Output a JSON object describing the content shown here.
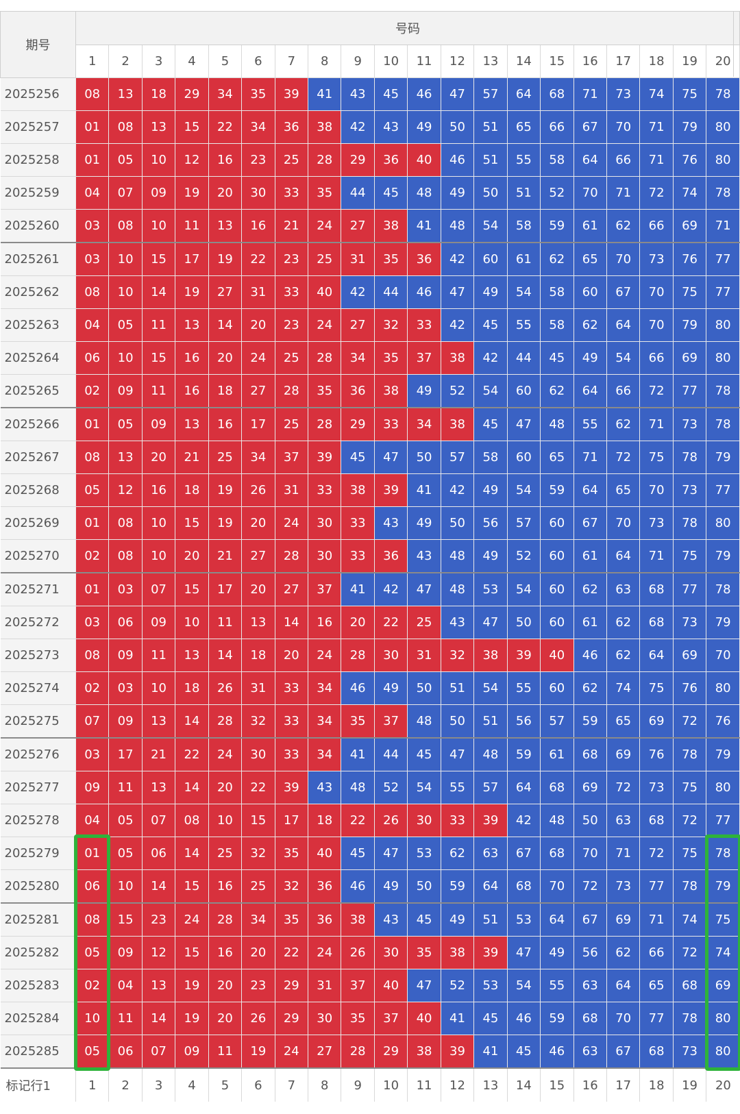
{
  "header": {
    "issue_label": "期号",
    "numbers_label": "号码",
    "columns": [
      "1",
      "2",
      "3",
      "4",
      "5",
      "6",
      "7",
      "8",
      "9",
      "10",
      "11",
      "12",
      "13",
      "14",
      "15",
      "16",
      "17",
      "18",
      "19",
      "20"
    ]
  },
  "colors": {
    "low": "#d8313d",
    "high": "#3a62c4",
    "marker": "#2eb33a"
  },
  "rows": [
    {
      "issue": "2025256",
      "nums": [
        "08",
        "13",
        "18",
        "29",
        "34",
        "35",
        "39",
        "41",
        "43",
        "45",
        "46",
        "47",
        "57",
        "64",
        "68",
        "71",
        "73",
        "74",
        "75",
        "78"
      ],
      "red": 7
    },
    {
      "issue": "2025257",
      "nums": [
        "01",
        "08",
        "13",
        "15",
        "22",
        "34",
        "36",
        "38",
        "42",
        "43",
        "49",
        "50",
        "51",
        "65",
        "66",
        "67",
        "70",
        "71",
        "79",
        "80"
      ],
      "red": 8
    },
    {
      "issue": "2025258",
      "nums": [
        "01",
        "05",
        "10",
        "12",
        "16",
        "23",
        "25",
        "28",
        "29",
        "36",
        "40",
        "46",
        "51",
        "55",
        "58",
        "64",
        "66",
        "71",
        "76",
        "80"
      ],
      "red": 11
    },
    {
      "issue": "2025259",
      "nums": [
        "04",
        "07",
        "09",
        "19",
        "20",
        "30",
        "33",
        "35",
        "44",
        "45",
        "48",
        "49",
        "50",
        "51",
        "52",
        "70",
        "71",
        "72",
        "74",
        "78"
      ],
      "red": 8
    },
    {
      "issue": "2025260",
      "nums": [
        "03",
        "08",
        "10",
        "11",
        "13",
        "16",
        "21",
        "24",
        "27",
        "38",
        "41",
        "48",
        "54",
        "58",
        "59",
        "61",
        "62",
        "66",
        "69",
        "71"
      ],
      "red": 10
    },
    {
      "issue": "2025261",
      "nums": [
        "03",
        "10",
        "15",
        "17",
        "19",
        "22",
        "23",
        "25",
        "31",
        "35",
        "36",
        "42",
        "60",
        "61",
        "62",
        "65",
        "70",
        "73",
        "76",
        "77"
      ],
      "red": 11
    },
    {
      "issue": "2025262",
      "nums": [
        "08",
        "10",
        "14",
        "19",
        "27",
        "31",
        "33",
        "40",
        "42",
        "44",
        "46",
        "47",
        "49",
        "54",
        "58",
        "60",
        "67",
        "70",
        "75",
        "77"
      ],
      "red": 8
    },
    {
      "issue": "2025263",
      "nums": [
        "04",
        "05",
        "11",
        "13",
        "14",
        "20",
        "23",
        "24",
        "27",
        "32",
        "33",
        "42",
        "45",
        "55",
        "58",
        "62",
        "64",
        "70",
        "79",
        "80"
      ],
      "red": 11
    },
    {
      "issue": "2025264",
      "nums": [
        "06",
        "10",
        "15",
        "16",
        "20",
        "24",
        "25",
        "28",
        "34",
        "35",
        "37",
        "38",
        "42",
        "44",
        "45",
        "49",
        "54",
        "66",
        "69",
        "80"
      ],
      "red": 12
    },
    {
      "issue": "2025265",
      "nums": [
        "02",
        "09",
        "11",
        "16",
        "18",
        "27",
        "28",
        "35",
        "36",
        "38",
        "49",
        "52",
        "54",
        "60",
        "62",
        "64",
        "66",
        "72",
        "77",
        "78"
      ],
      "red": 10
    },
    {
      "issue": "2025266",
      "nums": [
        "01",
        "05",
        "09",
        "13",
        "16",
        "17",
        "25",
        "28",
        "29",
        "33",
        "34",
        "38",
        "45",
        "47",
        "48",
        "55",
        "62",
        "71",
        "73",
        "78"
      ],
      "red": 12
    },
    {
      "issue": "2025267",
      "nums": [
        "08",
        "13",
        "20",
        "21",
        "25",
        "34",
        "37",
        "39",
        "45",
        "47",
        "50",
        "57",
        "58",
        "60",
        "65",
        "71",
        "72",
        "75",
        "78",
        "79"
      ],
      "red": 8
    },
    {
      "issue": "2025268",
      "nums": [
        "05",
        "12",
        "16",
        "18",
        "19",
        "26",
        "31",
        "33",
        "38",
        "39",
        "41",
        "42",
        "49",
        "54",
        "59",
        "64",
        "65",
        "70",
        "73",
        "77"
      ],
      "red": 10
    },
    {
      "issue": "2025269",
      "nums": [
        "01",
        "08",
        "10",
        "15",
        "19",
        "20",
        "24",
        "30",
        "33",
        "43",
        "49",
        "50",
        "56",
        "57",
        "60",
        "67",
        "70",
        "73",
        "78",
        "80"
      ],
      "red": 9
    },
    {
      "issue": "2025270",
      "nums": [
        "02",
        "08",
        "10",
        "20",
        "21",
        "27",
        "28",
        "30",
        "33",
        "36",
        "43",
        "48",
        "49",
        "52",
        "60",
        "61",
        "64",
        "71",
        "75",
        "79"
      ],
      "red": 10
    },
    {
      "issue": "2025271",
      "nums": [
        "01",
        "03",
        "07",
        "15",
        "17",
        "20",
        "27",
        "37",
        "41",
        "42",
        "47",
        "48",
        "53",
        "54",
        "60",
        "62",
        "63",
        "68",
        "77",
        "78"
      ],
      "red": 8
    },
    {
      "issue": "2025272",
      "nums": [
        "03",
        "06",
        "09",
        "10",
        "11",
        "13",
        "14",
        "16",
        "20",
        "22",
        "25",
        "43",
        "47",
        "50",
        "60",
        "61",
        "62",
        "68",
        "73",
        "79"
      ],
      "red": 11
    },
    {
      "issue": "2025273",
      "nums": [
        "08",
        "09",
        "11",
        "13",
        "14",
        "18",
        "20",
        "24",
        "28",
        "30",
        "31",
        "32",
        "38",
        "39",
        "40",
        "46",
        "62",
        "64",
        "69",
        "70"
      ],
      "red": 15
    },
    {
      "issue": "2025274",
      "nums": [
        "02",
        "03",
        "10",
        "18",
        "26",
        "31",
        "33",
        "34",
        "46",
        "49",
        "50",
        "51",
        "54",
        "55",
        "60",
        "62",
        "74",
        "75",
        "76",
        "80"
      ],
      "red": 8
    },
    {
      "issue": "2025275",
      "nums": [
        "07",
        "09",
        "13",
        "14",
        "28",
        "32",
        "33",
        "34",
        "35",
        "37",
        "48",
        "50",
        "51",
        "56",
        "57",
        "59",
        "65",
        "69",
        "72",
        "76"
      ],
      "red": 10
    },
    {
      "issue": "2025276",
      "nums": [
        "03",
        "17",
        "21",
        "22",
        "24",
        "30",
        "33",
        "34",
        "41",
        "44",
        "45",
        "47",
        "48",
        "59",
        "61",
        "68",
        "69",
        "76",
        "78",
        "79"
      ],
      "red": 8
    },
    {
      "issue": "2025277",
      "nums": [
        "09",
        "11",
        "13",
        "14",
        "20",
        "22",
        "39",
        "43",
        "48",
        "52",
        "54",
        "55",
        "57",
        "64",
        "68",
        "69",
        "72",
        "73",
        "75",
        "80"
      ],
      "red": 7
    },
    {
      "issue": "2025278",
      "nums": [
        "04",
        "05",
        "07",
        "08",
        "10",
        "15",
        "17",
        "18",
        "22",
        "26",
        "30",
        "33",
        "39",
        "42",
        "48",
        "50",
        "63",
        "68",
        "72",
        "77"
      ],
      "red": 13
    },
    {
      "issue": "2025279",
      "nums": [
        "01",
        "05",
        "06",
        "14",
        "25",
        "32",
        "35",
        "40",
        "45",
        "47",
        "53",
        "62",
        "63",
        "67",
        "68",
        "70",
        "71",
        "72",
        "75",
        "78"
      ],
      "red": 8
    },
    {
      "issue": "2025280",
      "nums": [
        "06",
        "10",
        "14",
        "15",
        "16",
        "25",
        "32",
        "36",
        "46",
        "49",
        "50",
        "59",
        "64",
        "68",
        "70",
        "72",
        "73",
        "77",
        "78",
        "79"
      ],
      "red": 8
    },
    {
      "issue": "2025281",
      "nums": [
        "08",
        "15",
        "23",
        "24",
        "28",
        "34",
        "35",
        "36",
        "38",
        "43",
        "45",
        "49",
        "51",
        "53",
        "64",
        "67",
        "69",
        "71",
        "74",
        "75"
      ],
      "red": 9
    },
    {
      "issue": "2025282",
      "nums": [
        "05",
        "09",
        "12",
        "15",
        "16",
        "20",
        "22",
        "24",
        "26",
        "30",
        "35",
        "38",
        "39",
        "47",
        "49",
        "56",
        "62",
        "66",
        "72",
        "74"
      ],
      "red": 13
    },
    {
      "issue": "2025283",
      "nums": [
        "02",
        "04",
        "13",
        "19",
        "20",
        "23",
        "29",
        "31",
        "37",
        "40",
        "47",
        "52",
        "53",
        "54",
        "55",
        "63",
        "64",
        "65",
        "68",
        "69"
      ],
      "red": 10
    },
    {
      "issue": "2025284",
      "nums": [
        "10",
        "11",
        "14",
        "19",
        "20",
        "26",
        "29",
        "30",
        "35",
        "37",
        "40",
        "41",
        "45",
        "46",
        "59",
        "68",
        "70",
        "77",
        "78",
        "80"
      ],
      "red": 11
    },
    {
      "issue": "2025285",
      "nums": [
        "05",
        "06",
        "07",
        "09",
        "11",
        "19",
        "24",
        "27",
        "28",
        "29",
        "38",
        "39",
        "41",
        "45",
        "46",
        "63",
        "67",
        "68",
        "73",
        "80"
      ],
      "red": 12
    }
  ],
  "footer": {
    "label": "标记行1",
    "columns": [
      "1",
      "2",
      "3",
      "4",
      "5",
      "6",
      "7",
      "8",
      "9",
      "10",
      "11",
      "12",
      "13",
      "14",
      "15",
      "16",
      "17",
      "18",
      "19",
      "20"
    ]
  }
}
